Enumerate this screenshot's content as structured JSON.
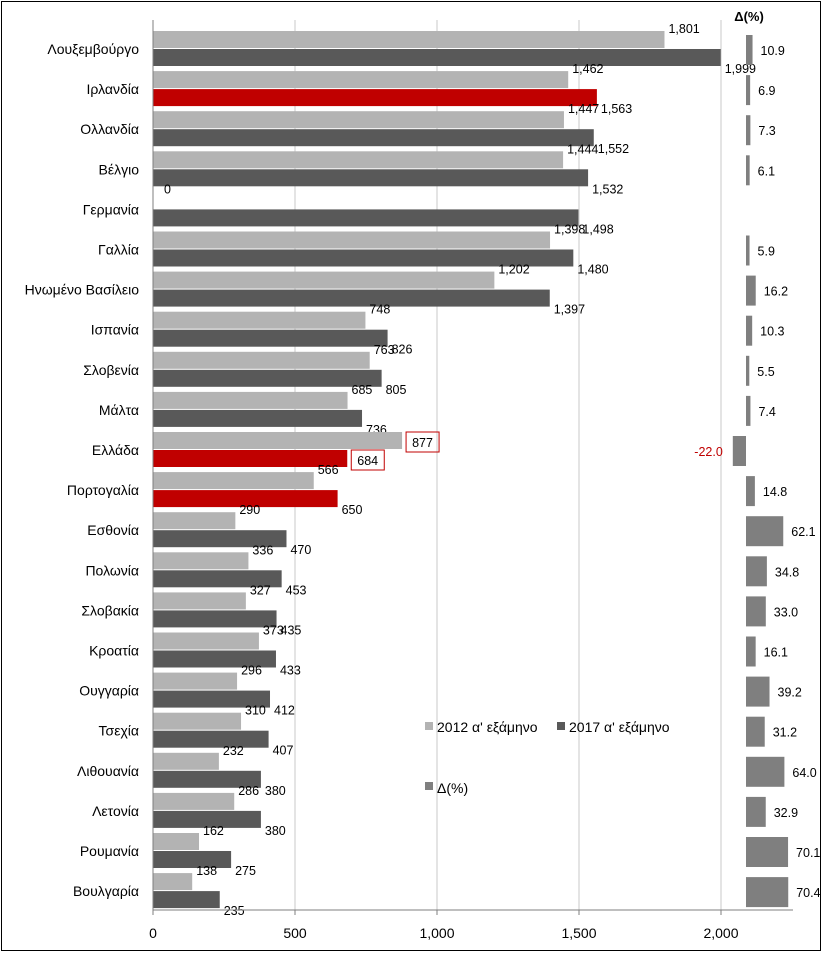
{
  "chart_data": {
    "type": "bar",
    "orientation": "horizontal",
    "categories": [
      "Λουξεμβούργο",
      "Ιρλανδία",
      "Ολλανδία",
      "Βέλγιο",
      "Γερμανία",
      "Γαλλία",
      "Ηνωμένο Βασίλειο",
      "Ισπανία",
      "Σλοβενία",
      "Μάλτα",
      "Ελλάδα",
      "Πορτογαλία",
      "Εσθονία",
      "Πολωνία",
      "Σλοβακία",
      "Κροατία",
      "Ουγγαρία",
      "Τσεχία",
      "Λιθουανία",
      "Λετονία",
      "Ρουμανία",
      "Βουλγαρία"
    ],
    "series": [
      {
        "name": "2012 α' εξάμηνο",
        "values": [
          1801,
          1462,
          1447,
          1444,
          0,
          1398,
          1202,
          748,
          763,
          685,
          877,
          566,
          290,
          336,
          327,
          373,
          296,
          310,
          232,
          286,
          162,
          138
        ],
        "labels": [
          "1,801",
          "1,462",
          "1,447",
          "1,444",
          "0",
          "1,398",
          "1,202",
          "748",
          "763",
          "685",
          "877",
          "566",
          "290",
          "336",
          "327",
          "373",
          "296",
          "310",
          "232",
          "286",
          "162",
          "138"
        ]
      },
      {
        "name": "2017 α' εξάμηνο",
        "values": [
          1999,
          1563,
          1552,
          1532,
          1498,
          1480,
          1397,
          826,
          805,
          736,
          684,
          650,
          470,
          453,
          435,
          433,
          412,
          407,
          380,
          380,
          275,
          235
        ],
        "labels": [
          "1,999",
          "1,563",
          "1,552",
          "1,532",
          "1,498",
          "1,480",
          "1,397",
          "826",
          "805",
          "736",
          "684",
          "650",
          "470",
          "453",
          "435",
          "433",
          "412",
          "407",
          "380",
          "380",
          "275",
          "235"
        ]
      }
    ],
    "delta": {
      "name": "Δ(%)",
      "values": [
        10.9,
        6.9,
        7.3,
        6.1,
        null,
        5.9,
        16.2,
        10.3,
        5.5,
        7.4,
        -22.0,
        14.8,
        62.1,
        34.8,
        33.0,
        16.1,
        39.2,
        31.2,
        64.0,
        32.9,
        70.1,
        70.4
      ],
      "labels": [
        "10.9",
        "6.9",
        "7.3",
        "6.1",
        "",
        "5.9",
        "16.2",
        "10.3",
        "5.5",
        "7.4",
        "-22.0",
        "14.8",
        "62.1",
        "34.8",
        "33.0",
        "16.1",
        "39.2",
        "31.2",
        "64.0",
        "32.9",
        "70.1",
        "70.4"
      ]
    },
    "delta_header": "Δ(%)",
    "highlight_categories": [
      "Ιρλανδία",
      "Ελλάδα",
      "Πορτογαλία"
    ],
    "boxed_labels": [
      "Ελλάδα"
    ],
    "xlim": [
      0,
      2000
    ],
    "xticks": [
      0,
      500,
      1000,
      1500,
      2000
    ],
    "xtick_labels": [
      "0",
      "500",
      "1,000",
      "1,500",
      "2,000"
    ],
    "grid": true,
    "legend_placement": "lower-right inside plot",
    "colors": {
      "series_2012": "#b3b3b3",
      "series_2017": "#595959",
      "highlight": "#c00000",
      "delta_bar": "#7f7f7f",
      "negative_label": "#c00000",
      "gridline": "#c8c8c8"
    }
  }
}
